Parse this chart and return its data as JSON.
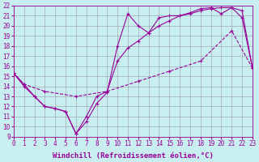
{
  "background_color": "#c8eef0",
  "line_color": "#990099",
  "grid_color": "#9999aa",
  "xlabel": "Windchill (Refroidissement éolien,°C)",
  "xlabel_fontsize": 6.5,
  "tick_fontsize": 5.5,
  "xlim": [
    0,
    23
  ],
  "ylim": [
    9,
    22
  ],
  "xticks": [
    0,
    1,
    2,
    3,
    4,
    5,
    6,
    7,
    8,
    9,
    10,
    11,
    12,
    13,
    14,
    15,
    16,
    17,
    18,
    19,
    20,
    21,
    22,
    23
  ],
  "yticks": [
    9,
    10,
    11,
    12,
    13,
    14,
    15,
    16,
    17,
    18,
    19,
    20,
    21,
    22
  ],
  "line1_x": [
    0,
    1,
    2,
    3,
    4,
    5,
    6,
    7,
    8,
    9,
    10,
    11,
    12,
    13,
    14,
    15,
    16,
    17,
    18,
    19,
    20,
    21,
    22,
    23
  ],
  "line1_y": [
    15.3,
    14.0,
    13.0,
    12.0,
    11.8,
    11.5,
    9.3,
    10.5,
    12.3,
    13.4,
    18.0,
    21.2,
    20.0,
    19.3,
    20.8,
    21.0,
    21.0,
    21.3,
    21.7,
    21.8,
    21.2,
    21.8,
    20.8,
    15.8
  ],
  "line2_x": [
    0,
    1,
    2,
    3,
    4,
    5,
    6,
    7,
    8,
    9,
    10,
    11,
    12,
    13,
    14,
    15,
    16,
    17,
    18,
    19,
    20,
    21,
    22,
    23
  ],
  "line2_y": [
    15.3,
    14.2,
    13.0,
    12.0,
    11.8,
    11.5,
    9.3,
    11.0,
    13.0,
    13.5,
    16.5,
    17.8,
    18.5,
    19.3,
    20.0,
    20.5,
    21.0,
    21.2,
    21.5,
    21.7,
    21.8,
    21.8,
    21.5,
    15.8
  ],
  "line3_x": [
    0,
    1,
    3,
    6,
    9,
    12,
    15,
    18,
    21,
    23
  ],
  "line3_y": [
    15.3,
    14.2,
    13.5,
    13.0,
    13.5,
    14.5,
    15.5,
    16.5,
    19.5,
    15.8
  ]
}
